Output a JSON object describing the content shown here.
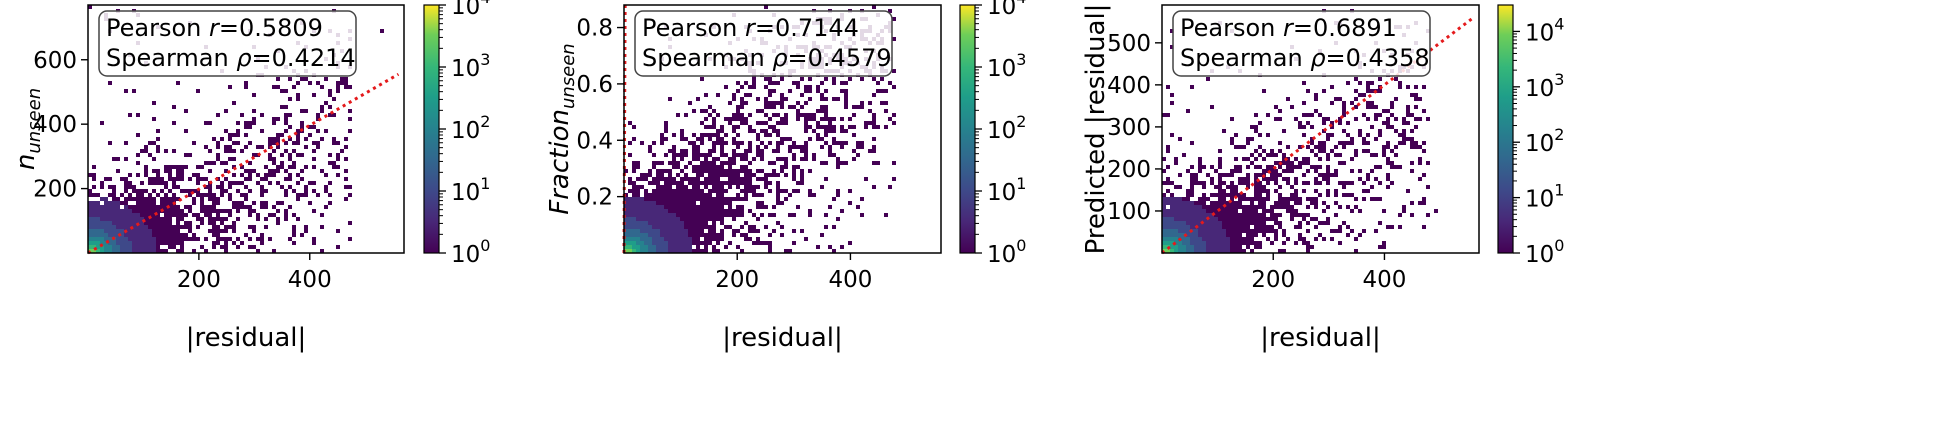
{
  "chart_data": [
    {
      "type": "heatmap",
      "title": "",
      "xlabel": "|residual|",
      "ylabel_main": "n",
      "ylabel_sub": "unseen",
      "ylabel_italic": true,
      "xlim": [
        0,
        570
      ],
      "ylim": [
        0,
        770
      ],
      "xticks": [
        200,
        400
      ],
      "yticks": [
        200,
        400,
        600
      ],
      "trend_line": {
        "x": [
          0,
          560
        ],
        "y": [
          0,
          555
        ]
      },
      "stats": {
        "pearson_label": "Pearson ",
        "pearson_symbol": "r",
        "pearson_value": "=0.5809",
        "spearman_label": "Spearman ",
        "spearman_symbol": "ρ",
        "spearman_value": "=0.4214"
      },
      "colorbar": {
        "scale": "log",
        "min": 1,
        "max": 10000,
        "ticks": [
          "10",
          "10",
          "10",
          "10",
          "10"
        ],
        "exponents": [
          "0",
          "1",
          "2",
          "3",
          "4"
        ]
      },
      "density_spread_y": 180,
      "density_slope": 0.75,
      "density_extent_x": 470
    },
    {
      "type": "heatmap",
      "title": "",
      "xlabel": "|residual|",
      "ylabel_main": "Fraction",
      "ylabel_sub": "unseen",
      "ylabel_italic": true,
      "xlim": [
        0,
        560
      ],
      "ylim": [
        0,
        0.88
      ],
      "xticks": [
        200,
        400
      ],
      "yticks": [
        0.2,
        0.4,
        0.6,
        0.8
      ],
      "trend_line": {
        "x": [
          0,
          2
        ],
        "y": [
          0,
          0.88
        ]
      },
      "stats": {
        "pearson_label": "Pearson ",
        "pearson_symbol": "r",
        "pearson_value": "=0.7144",
        "spearman_label": "Spearman ",
        "spearman_symbol": "ρ",
        "spearman_value": "=0.4579"
      },
      "colorbar": {
        "scale": "log",
        "min": 1,
        "max": 10000,
        "ticks": [
          "10",
          "10",
          "10",
          "10",
          "10"
        ],
        "exponents": [
          "0",
          "1",
          "2",
          "3",
          "4"
        ]
      },
      "density_spread_y": 0.3,
      "density_slope": 0.0016,
      "density_extent_x": 480
    },
    {
      "type": "heatmap",
      "title": "",
      "xlabel": "|residual|",
      "ylabel_main": "Predicted |residual|",
      "ylabel_sub": "",
      "ylabel_italic": false,
      "xlim": [
        0,
        570
      ],
      "ylim": [
        0,
        590
      ],
      "xticks": [
        200,
        400
      ],
      "yticks": [
        100,
        200,
        300,
        400,
        500
      ],
      "trend_line": {
        "x": [
          0,
          560
        ],
        "y": [
          0,
          560
        ]
      },
      "stats": {
        "pearson_label": "Pearson ",
        "pearson_symbol": "r",
        "pearson_value": "=0.6891",
        "spearman_label": "Spearman ",
        "spearman_symbol": "ρ",
        "spearman_value": "=0.4358"
      },
      "colorbar": {
        "scale": "log",
        "min": 1,
        "max": 30000,
        "ticks": [
          "10",
          "10",
          "10",
          "10",
          "10"
        ],
        "exponents": [
          "0",
          "1",
          "2",
          "3",
          "4"
        ]
      },
      "density_spread_y": 140,
      "density_slope": 0.7,
      "density_extent_x": 480
    }
  ]
}
